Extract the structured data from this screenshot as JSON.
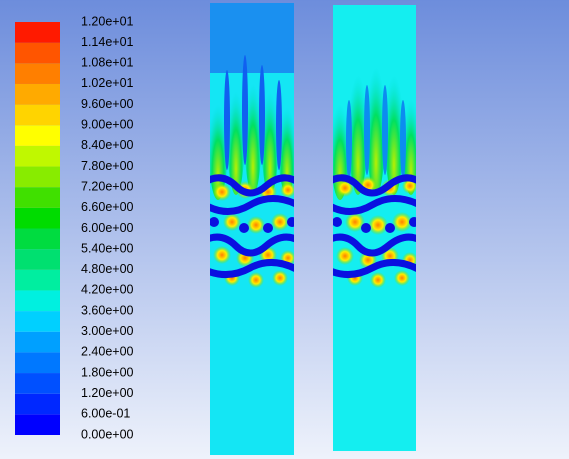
{
  "chart_data": {
    "type": "contour",
    "lim": [
      0,
      12
    ],
    "ticks": [
      {
        "value": 0,
        "label": "0.00e+00"
      },
      {
        "value": 0.6,
        "label": "6.00e-01"
      },
      {
        "value": 1.2,
        "label": "1.20e+00"
      },
      {
        "value": 1.8,
        "label": "1.80e+00"
      },
      {
        "value": 2.4,
        "label": "2.40e+00"
      },
      {
        "value": 3,
        "label": "3.00e+00"
      },
      {
        "value": 3.6,
        "label": "3.60e+00"
      },
      {
        "value": 4.2,
        "label": "4.20e+00"
      },
      {
        "value": 4.8,
        "label": "4.80e+00"
      },
      {
        "value": 5.4,
        "label": "5.40e+00"
      },
      {
        "value": 6,
        "label": "6.00e+00"
      },
      {
        "value": 6.6,
        "label": "6.60e+00"
      },
      {
        "value": 7.2,
        "label": "7.20e+00"
      },
      {
        "value": 7.8,
        "label": "7.80e+00"
      },
      {
        "value": 8.4,
        "label": "8.40e+00"
      },
      {
        "value": 9,
        "label": "9.00e+00"
      },
      {
        "value": 9.6,
        "label": "9.60e+00"
      },
      {
        "value": 10.2,
        "label": "1.02e+01"
      },
      {
        "value": 10.8,
        "label": "1.08e+01"
      },
      {
        "value": 11.4,
        "label": "1.14e+01"
      },
      {
        "value": 12,
        "label": "1.20e+01"
      }
    ],
    "colors": [
      "#0000ff",
      "#0028ff",
      "#0050ff",
      "#0078ff",
      "#00a0ff",
      "#00d0ff",
      "#00f0e0",
      "#00eea0",
      "#00e070",
      "#00dc40",
      "#00dc00",
      "#40e000",
      "#88ec00",
      "#c0f800",
      "#ffff00",
      "#ffd400",
      "#ffaa00",
      "#ff7f00",
      "#ff5500",
      "#ff1a00"
    ]
  }
}
